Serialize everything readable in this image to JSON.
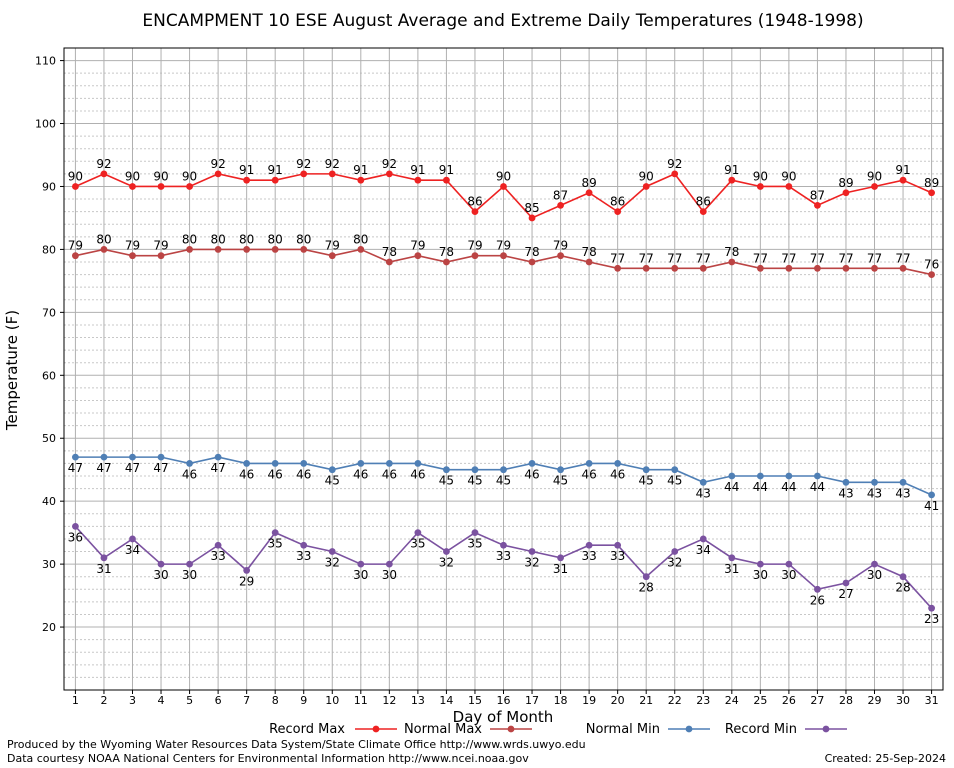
{
  "chart_data": {
    "type": "line",
    "title": "ENCAMPMENT 10 ESE August Average and Extreme Daily Temperatures (1948-1998)",
    "xlabel": "Day of Month",
    "ylabel": "Temperature (F)",
    "x": [
      1,
      2,
      3,
      4,
      5,
      6,
      7,
      8,
      9,
      10,
      11,
      12,
      13,
      14,
      15,
      16,
      17,
      18,
      19,
      20,
      21,
      22,
      23,
      24,
      25,
      26,
      27,
      28,
      29,
      30,
      31
    ],
    "xlim": [
      0.6,
      31.4
    ],
    "ylim": [
      10,
      112
    ],
    "yticks": [
      20,
      30,
      40,
      50,
      60,
      70,
      80,
      90,
      100,
      110
    ],
    "grid": true,
    "legend_position": "bottom",
    "series": [
      {
        "name": "Record Max",
        "color": "#ee2222",
        "values": [
          90,
          92,
          90,
          90,
          90,
          92,
          91,
          91,
          92,
          92,
          91,
          92,
          91,
          91,
          86,
          90,
          85,
          87,
          89,
          86,
          90,
          92,
          86,
          91,
          90,
          90,
          87,
          89,
          90,
          91,
          89
        ],
        "label_position": "above"
      },
      {
        "name": "Normal Max",
        "color": "#bb4444",
        "values": [
          79,
          80,
          79,
          79,
          80,
          80,
          80,
          80,
          80,
          79,
          80,
          78,
          79,
          78,
          79,
          79,
          78,
          79,
          78,
          77,
          77,
          77,
          77,
          78,
          77,
          77,
          77,
          77,
          77,
          77,
          76
        ],
        "label_position": "above"
      },
      {
        "name": "Normal Min",
        "color": "#4f7fb5",
        "values": [
          47,
          47,
          47,
          47,
          46,
          47,
          46,
          46,
          46,
          45,
          46,
          46,
          46,
          45,
          45,
          45,
          46,
          45,
          46,
          46,
          45,
          45,
          43,
          44,
          44,
          44,
          44,
          43,
          43,
          43,
          41
        ],
        "label_position": "below"
      },
      {
        "name": "Record Min",
        "color": "#7b52a0",
        "values": [
          36,
          31,
          34,
          30,
          30,
          33,
          29,
          35,
          33,
          32,
          30,
          30,
          35,
          32,
          35,
          33,
          32,
          31,
          33,
          33,
          28,
          32,
          34,
          31,
          30,
          30,
          26,
          27,
          30,
          28,
          23
        ],
        "label_position": "below"
      }
    ]
  },
  "footer": {
    "produced_by": "Produced by the Wyoming Water Resources Data System/State Climate Office http://www.wrds.uwyo.edu",
    "data_courtesy": "Data courtesy NOAA National Centers for Environmental Information http://www.ncei.noaa.gov",
    "created": "Created:  25-Sep-2024"
  }
}
